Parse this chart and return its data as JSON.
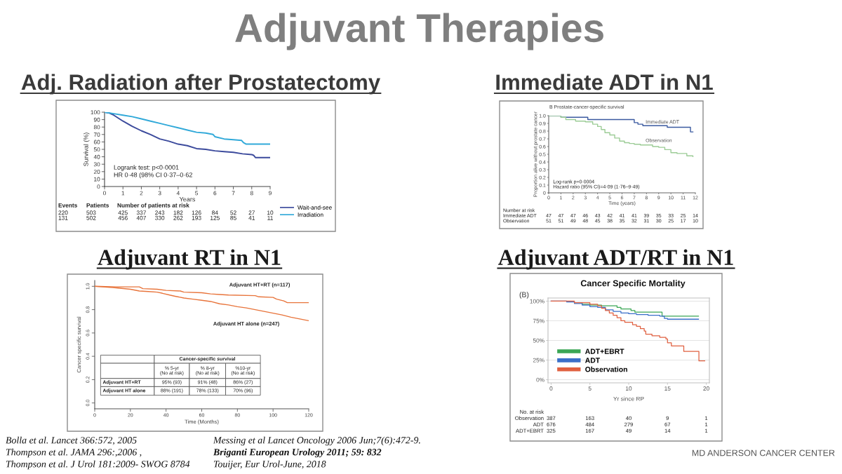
{
  "chart_data": [
    {
      "type": "line",
      "title": "Adj. Radiation after Prostatectomy",
      "xlabel": "Years",
      "ylabel": "Survival (%)",
      "xlim": [
        0,
        9
      ],
      "ylim": [
        0,
        100
      ],
      "xticks": [
        0,
        1,
        2,
        3,
        4,
        5,
        6,
        7,
        8,
        9
      ],
      "yticks": [
        0,
        10,
        20,
        30,
        40,
        50,
        60,
        70,
        80,
        90,
        100
      ],
      "legend": "bottom right",
      "series": [
        {
          "name": "Wait-and-see",
          "color": "#3b4a9c",
          "x": [
            0,
            0.25,
            0.5,
            0.75,
            1,
            1.5,
            2,
            2.5,
            3,
            3.5,
            4,
            4.5,
            5,
            5.5,
            6,
            6.5,
            7,
            7.5,
            8,
            8.1,
            8.2,
            9
          ],
          "values": [
            100,
            99,
            96,
            92,
            88,
            81,
            75,
            70,
            64,
            61,
            57,
            55,
            51,
            50,
            48,
            47,
            46,
            44,
            43,
            42,
            39,
            39
          ]
        },
        {
          "name": "Irradiation",
          "color": "#31a9d9",
          "x": [
            0,
            0.5,
            1,
            1.5,
            2,
            2.5,
            3,
            3.5,
            4,
            4.5,
            5,
            5.5,
            5.9,
            6,
            6.5,
            7,
            7.45,
            7.55,
            7.7,
            9
          ],
          "values": [
            100,
            98,
            96,
            94,
            91,
            88,
            85,
            82,
            79,
            76,
            73,
            72,
            70,
            67,
            64,
            63,
            62,
            59,
            57,
            57
          ]
        }
      ],
      "annotations": [
        "Adjuvant Therapies",
        "Logrank test: p<0·0001",
        "HR 0·48 (98% CI 0·37–0·62",
        "Events",
        "Patients",
        "Number of patients at risk",
        "220",
        "503",
        "425",
        "337",
        "243",
        "182",
        "126",
        "84",
        "52",
        "27",
        "10",
        "131",
        "502",
        "456",
        "407",
        "330",
        "262",
        "193",
        "125",
        "85",
        "41",
        "11",
        "Bolla et al. Lancet 366:572, 2005",
        "Thompson et al. JAMA 296:,2006 ,",
        "Thompson et al. J Urol 181:2009- SWOG 8784"
      ]
    },
    {
      "type": "step",
      "title": "Immediate ADT in N1",
      "subtitle": "B Prostate-cancer-specific survival",
      "xlabel": "Time (years)",
      "ylabel": "Proportion alive without prostate cancer",
      "xlim": [
        0,
        12
      ],
      "ylim": [
        0,
        1
      ],
      "xticks": [
        0,
        1,
        2,
        3,
        4,
        5,
        6,
        7,
        8,
        9,
        10,
        11,
        12
      ],
      "yticks": [
        0,
        0.1,
        0.2,
        0.3,
        0.4,
        0.5,
        0.6,
        0.7,
        0.8,
        0.9,
        {
          "value": 1,
          "label": "1.0"
        }
      ],
      "series": [
        {
          "name": "Immediate ADT",
          "color": "#3b5aa0",
          "x": [
            0,
            1.0,
            3.2,
            7.0,
            7.3,
            7.7,
            9.7,
            11.6,
            11.8
          ],
          "values": [
            1.0,
            0.98,
            0.95,
            0.91,
            0.89,
            0.87,
            0.85,
            0.79,
            0.79
          ]
        },
        {
          "name": "Observation",
          "color": "#9ccc96",
          "x": [
            0,
            1.0,
            1.4,
            2.2,
            3.0,
            3.6,
            4.0,
            4.3,
            4.6,
            5.0,
            5.4,
            5.8,
            6.2,
            6.6,
            7.0,
            7.5,
            8.5,
            9.0,
            9.5,
            10.0,
            10.5,
            11.3,
            11.8
          ],
          "values": [
            1.0,
            0.98,
            0.95,
            0.93,
            0.92,
            0.89,
            0.86,
            0.82,
            0.78,
            0.75,
            0.71,
            0.67,
            0.65,
            0.64,
            0.63,
            0.62,
            0.6,
            0.59,
            0.56,
            0.52,
            0.51,
            0.48,
            0.47
          ]
        }
      ],
      "annotations": [
        "Log-rank p=0·0004",
        "Hazard ratio (95% CI)=4·09 (1·76–9·49)",
        "Number at risk",
        "Immediate ADT",
        "47",
        "47",
        "47",
        "46",
        "43",
        "42",
        "41",
        "41",
        "39",
        "35",
        "33",
        "25",
        "14",
        "Observation",
        "51",
        "51",
        "49",
        "48",
        "45",
        "38",
        "35",
        "32",
        "31",
        "30",
        "25",
        "17",
        "10",
        "Messing et al Lancet Oncology 2006 Jun;7(6):472-9."
      ]
    },
    {
      "type": "line",
      "title": "Adjuvant RT in N1",
      "xlabel": "Time (Months)",
      "ylabel": "Cancer specific survival",
      "xlim": [
        0,
        120
      ],
      "ylim": [
        -0.05,
        1.05
      ],
      "xticks": [
        0,
        20,
        40,
        60,
        80,
        100,
        120
      ],
      "yticks": [
        {
          "value": 0,
          "label": "0.0"
        },
        {
          "value": 0.2,
          "label": "0.2"
        },
        {
          "value": 0.4,
          "label": "0.4"
        },
        {
          "value": 0.6,
          "label": "0.6"
        },
        {
          "value": 0.8,
          "label": "0.8"
        },
        {
          "value": 1,
          "label": "1.0"
        }
      ],
      "series": [
        {
          "name": "Adjuvant HT+RT (n=117)",
          "color": "#e8743b",
          "x": [
            0,
            12,
            25,
            27,
            35,
            40,
            48,
            50,
            60,
            65,
            70,
            75,
            90,
            92,
            100,
            102,
            106,
            108,
            120
          ],
          "values": [
            1.0,
            0.995,
            0.995,
            0.98,
            0.975,
            0.965,
            0.96,
            0.95,
            0.945,
            0.935,
            0.93,
            0.925,
            0.92,
            0.91,
            0.905,
            0.89,
            0.875,
            0.86,
            0.86
          ]
        },
        {
          "name": "Adjuvant HT alone (n=247)",
          "color": "#e8743b",
          "x": [
            0,
            10,
            20,
            25,
            30,
            35,
            38,
            42,
            45,
            50,
            55,
            60,
            65,
            70,
            75,
            80,
            85,
            90,
            95,
            100,
            105,
            110,
            115,
            120
          ],
          "values": [
            1.0,
            0.99,
            0.975,
            0.96,
            0.955,
            0.95,
            0.94,
            0.925,
            0.915,
            0.9,
            0.89,
            0.88,
            0.87,
            0.85,
            0.84,
            0.825,
            0.815,
            0.8,
            0.785,
            0.77,
            0.755,
            0.735,
            0.72,
            0.705
          ]
        }
      ],
      "annotations": [
        "Cancer-specific survival",
        "% 5-yr\n(No at risk)",
        "% 8-yr\n(No at risk)",
        "%10-yr\n(No at risk)",
        "Adjuvant HT+RT",
        "95% (93)",
        "91% (48)",
        "86% (27)",
        "Adjuvant HT alone",
        "88% (191)",
        "78% (133)",
        "70% (96)",
        "Briganti European Urology 2011; 59: 832"
      ]
    },
    {
      "type": "step",
      "title": "Adjuvant ADT/RT in N1",
      "subtitle": "Cancer Specific Mortality",
      "xlabel": "Yr since RP",
      "xlim": [
        -0.4,
        20.4
      ],
      "ylim": [
        -4,
        104
      ],
      "xticks": [
        0,
        5,
        10,
        15,
        20
      ],
      "yticks": [
        {
          "value": 0,
          "label": "0%"
        },
        {
          "value": 25,
          "label": "25%"
        },
        {
          "value": 50,
          "label": "50%"
        },
        {
          "value": 75,
          "label": "75%"
        },
        {
          "value": 100,
          "label": "100%"
        }
      ],
      "grid": "y",
      "legend": "bottom left",
      "series": [
        {
          "name": "ADT+EBRT",
          "color": "#3aa655",
          "x": [
            3,
            4,
            5,
            6.5,
            8.5,
            9,
            10.3,
            10.8,
            14.3,
            19
          ],
          "values": [
            98,
            96,
            95,
            94,
            92,
            90,
            88,
            86,
            81,
            81
          ]
        },
        {
          "name": "ADT",
          "color": "#3a6fc9",
          "x": [
            0,
            2,
            3,
            4,
            5,
            6,
            7,
            8,
            9,
            10,
            11,
            12.5,
            14,
            14.6,
            15,
            19
          ],
          "values": [
            100,
            99,
            97,
            95,
            93,
            92,
            89,
            87,
            85,
            84,
            83,
            82,
            81,
            78,
            77,
            77
          ]
        },
        {
          "name": "Observation",
          "color": "#e06040",
          "x": [
            0,
            3,
            5,
            6,
            6.5,
            7,
            7.5,
            8,
            8.5,
            9,
            9.5,
            10.5,
            11,
            11.5,
            12,
            12.2,
            13,
            14,
            14.8,
            15,
            15.5,
            17.1,
            19.05,
            19.8
          ],
          "values": [
            100,
            98,
            96,
            94,
            91,
            88,
            85,
            82,
            79,
            75,
            73,
            70,
            68,
            65,
            62,
            58,
            56,
            54,
            52,
            47,
            43,
            36,
            24,
            24
          ]
        }
      ],
      "annotations": [
        "(B)",
        "No. at risk",
        "Observation",
        "387",
        "163",
        "40",
        "9",
        "1",
        "ADT",
        "676",
        "484",
        "279",
        "67",
        "1",
        "ADT+EBRT",
        "325",
        "167",
        "49",
        "14",
        "1",
        "Touijer, Eur Urol-June, 2018",
        "MD ANDERSON CANCER CENTER"
      ]
    }
  ]
}
